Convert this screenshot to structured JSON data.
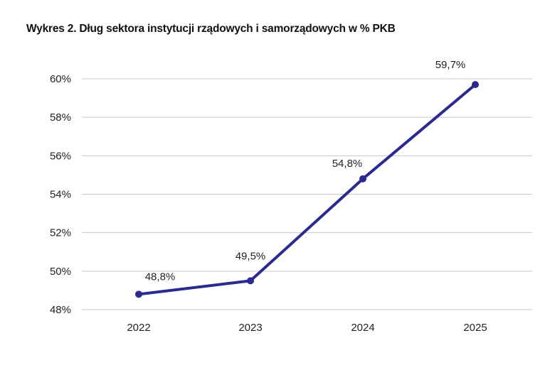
{
  "chart_data": {
    "type": "line",
    "title": "Wykres 2. Dług sektora instytucji rządowych i samorządowych w % PKB",
    "xlabel": "",
    "ylabel": "",
    "categories": [
      "2022",
      "2023",
      "2024",
      "2025"
    ],
    "series": [
      {
        "values": [
          48.8,
          49.5,
          54.8,
          59.7
        ],
        "data_labels": [
          "48,8%",
          "49,5%",
          "54,8%",
          "59,7%"
        ],
        "color": "#2b2b8f"
      }
    ],
    "ylim": [
      48,
      60
    ],
    "yticks": [
      48,
      50,
      52,
      54,
      56,
      58,
      60
    ],
    "ytick_labels": [
      "48%",
      "50%",
      "52%",
      "54%",
      "56%",
      "58%",
      "60%"
    ],
    "grid": true,
    "grid_color": "#c8c8c8",
    "legend": "none"
  }
}
